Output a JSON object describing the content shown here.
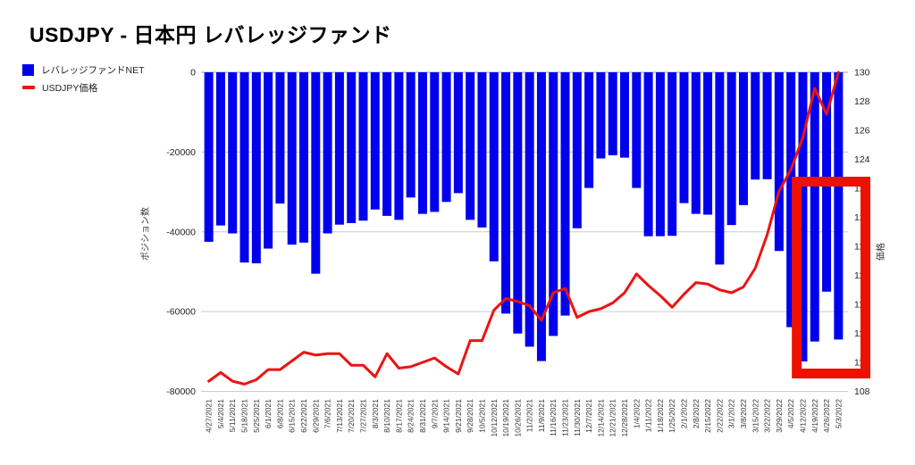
{
  "title": "USDJPY - 日本円 レバレッジファンド",
  "legend": [
    {
      "label": "レバレッジファンドNET",
      "color": "#0000ee",
      "marker": "square"
    },
    {
      "label": "USDJPY価格",
      "color": "#ec1313",
      "marker": "dash"
    }
  ],
  "chart_data": {
    "type": "combo-bar-line",
    "title": "USDJPY - 日本円 レバレッジファンド",
    "categories": [
      "4/27/2021",
      "5/4/2021",
      "5/11/2021",
      "5/18/2021",
      "5/25/2021",
      "6/1/2021",
      "6/8/2021",
      "6/15/2021",
      "6/22/2021",
      "6/29/2021",
      "7/6/2021",
      "7/13/2021",
      "7/20/2021",
      "7/27/2021",
      "8/3/2021",
      "8/10/2021",
      "8/17/2021",
      "8/24/2021",
      "8/31/2021",
      "9/7/2021",
      "9/14/2021",
      "9/21/2021",
      "9/28/2021",
      "10/5/2021",
      "10/12/2021",
      "10/19/2021",
      "10/26/2021",
      "11/2/2021",
      "11/9/2021",
      "11/16/2021",
      "11/23/2021",
      "11/30/2021",
      "12/7/2021",
      "12/14/2021",
      "12/21/2021",
      "12/28/2021",
      "1/4/2022",
      "1/11/2022",
      "1/18/2022",
      "1/25/2022",
      "2/1/2022",
      "2/8/2022",
      "2/15/2022",
      "2/22/2022",
      "3/1/2022",
      "3/8/2022",
      "3/15/2022",
      "3/22/2022",
      "3/29/2022",
      "4/5/2022",
      "4/12/2022",
      "4/19/2022",
      "4/26/2022",
      "5/3/2022"
    ],
    "series": [
      {
        "name": "レバレッジファンドNET",
        "type": "bar",
        "axis": "left",
        "color": "#0000ee",
        "values": [
          -42500,
          -38400,
          -40400,
          -47700,
          -47900,
          -44200,
          -32900,
          -43200,
          -42700,
          -50500,
          -40400,
          -38200,
          -37800,
          -37200,
          -34400,
          -36000,
          -37000,
          -31400,
          -35500,
          -35000,
          -32500,
          -30300,
          -37000,
          -38900,
          -47400,
          -60500,
          -65500,
          -68800,
          -72400,
          -66100,
          -61000,
          -39100,
          -29000,
          -21600,
          -20800,
          -21400,
          -29000,
          -41100,
          -41100,
          -41000,
          -32800,
          -35500,
          -35700,
          -48200,
          -38300,
          -33300,
          -26900,
          -26800,
          -44800,
          -63900,
          -72500,
          -67500,
          -55000,
          -67000
        ]
      },
      {
        "name": "USDJPY価格",
        "type": "line",
        "axis": "right",
        "color": "#ec1313",
        "values": [
          108.7,
          109.3,
          108.7,
          108.5,
          108.8,
          109.5,
          109.5,
          110.1,
          110.7,
          110.5,
          110.6,
          110.6,
          109.8,
          109.8,
          109.0,
          110.6,
          109.6,
          109.7,
          110.0,
          110.3,
          109.7,
          109.2,
          111.5,
          111.5,
          113.6,
          114.4,
          114.2,
          113.9,
          112.9,
          114.8,
          115.1,
          113.1,
          113.5,
          113.7,
          114.1,
          114.8,
          116.1,
          115.3,
          114.6,
          113.8,
          114.7,
          115.5,
          115.4,
          115.0,
          114.8,
          115.2,
          116.5,
          118.8,
          121.8,
          123.3,
          125.5,
          128.9,
          127.1,
          130.0
        ]
      }
    ],
    "left_axis": {
      "title": "ポジション数",
      "ticks": [
        0,
        -20000,
        -40000,
        -60000,
        -80000
      ],
      "range": [
        -80000,
        0
      ]
    },
    "right_axis": {
      "title": "価格",
      "ticks": [
        130,
        128,
        126,
        124,
        122,
        120,
        118,
        116,
        114,
        112,
        110,
        108
      ],
      "range": [
        108,
        130
      ]
    },
    "grid": "horizontal",
    "legend_position": "top-left",
    "highlight_box": {
      "color": "#ee1100",
      "from_category": "4/5/2022",
      "to_category": "5/3/2022"
    }
  }
}
